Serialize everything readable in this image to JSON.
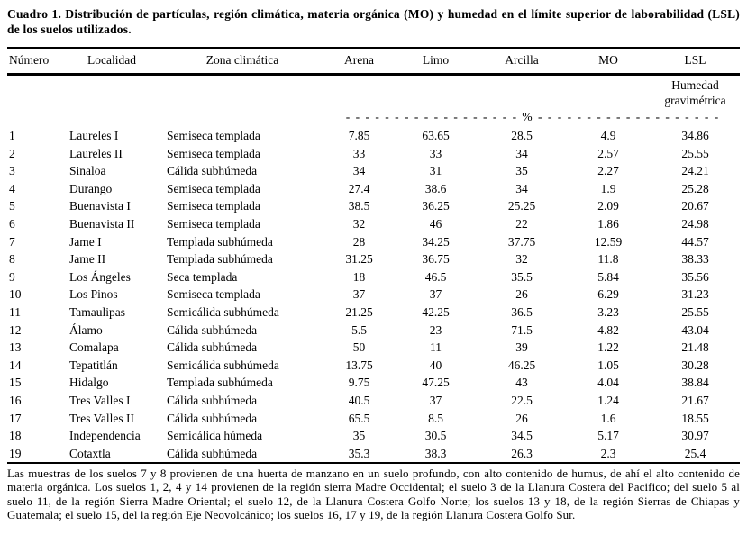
{
  "caption": "Cuadro 1. Distribución de partículas, región climática, materia orgánica (MO) y humedad en el límite superior de laborabilidad (LSL) de los suelos utilizados.",
  "table": {
    "columns": [
      "Número",
      "Localidad",
      "Zona climática",
      "Arena",
      "Limo",
      "Arcilla",
      "MO",
      "LSL"
    ],
    "lsl_subheader": "Humedad gravimétrica",
    "units_line": "- - - - - - - - - - - - - - - - - - % - - - - - - - - - - - - - - - - - - -",
    "rows": [
      [
        "1",
        "Laureles I",
        "Semiseca templada",
        "7.85",
        "63.65",
        "28.5",
        "4.9",
        "34.86"
      ],
      [
        "2",
        "Laureles II",
        "Semiseca templada",
        "33",
        "33",
        "34",
        "2.57",
        "25.55"
      ],
      [
        "3",
        "Sinaloa",
        "Cálida subhúmeda",
        "34",
        "31",
        "35",
        "2.27",
        "24.21"
      ],
      [
        "4",
        "Durango",
        "Semiseca templada",
        "27.4",
        "38.6",
        "34",
        "1.9",
        "25.28"
      ],
      [
        "5",
        "Buenavista I",
        "Semiseca templada",
        "38.5",
        "36.25",
        "25.25",
        "2.09",
        "20.67"
      ],
      [
        "6",
        "Buenavista II",
        "Semiseca templada",
        "32",
        "46",
        "22",
        "1.86",
        "24.98"
      ],
      [
        "7",
        "Jame I",
        "Templada subhúmeda",
        "28",
        "34.25",
        "37.75",
        "12.59",
        "44.57"
      ],
      [
        "8",
        "Jame II",
        "Templada subhúmeda",
        "31.25",
        "36.75",
        "32",
        "11.8",
        "38.33"
      ],
      [
        "9",
        "Los Ángeles",
        "Seca templada",
        "18",
        "46.5",
        "35.5",
        "5.84",
        "35.56"
      ],
      [
        "10",
        "Los Pinos",
        "Semiseca templada",
        "37",
        "37",
        "26",
        "6.29",
        "31.23"
      ],
      [
        "11",
        "Tamaulipas",
        "Semicálida subhúmeda",
        "21.25",
        "42.25",
        "36.5",
        "3.23",
        "25.55"
      ],
      [
        "12",
        "Álamo",
        "Cálida subhúmeda",
        "5.5",
        "23",
        "71.5",
        "4.82",
        "43.04"
      ],
      [
        "13",
        "Comalapa",
        "Cálida subhúmeda",
        "50",
        "11",
        "39",
        "1.22",
        "21.48"
      ],
      [
        "14",
        "Tepatitlán",
        "Semicálida subhúmeda",
        "13.75",
        "40",
        "46.25",
        "1.05",
        "30.28"
      ],
      [
        "15",
        "Hidalgo",
        "Templada subhúmeda",
        "9.75",
        "47.25",
        "43",
        "4.04",
        "38.84"
      ],
      [
        "16",
        "Tres Valles I",
        "Cálida subhúmeda",
        "40.5",
        "37",
        "22.5",
        "1.24",
        "21.67"
      ],
      [
        "17",
        "Tres Valles II",
        "Cálida subhúmeda",
        "65.5",
        "8.5",
        "26",
        "1.6",
        "18.55"
      ],
      [
        "18",
        "Independencia",
        "Semicálida húmeda",
        "35",
        "30.5",
        "34.5",
        "5.17",
        "30.97"
      ],
      [
        "19",
        "Cotaxtla",
        "Cálida subhúmeda",
        "35.3",
        "38.3",
        "26.3",
        "2.3",
        "25.4"
      ]
    ]
  },
  "footnote": "Las muestras de los suelos 7 y 8 provienen de una huerta de manzano en un suelo profundo, con alto contenido de humus, de ahí el alto contenido de materia orgánica. Los suelos 1, 2, 4 y 14 provienen de la región sierra Madre Occidental; el suelo 3 de la Llanura Costera del Pacifico; del suelo 5 al suelo 11, de la región Sierra Madre Oriental;  el suelo 12, de la Llanura Costera Golfo Norte; los suelos 13 y 18, de la región Sierras de Chiapas y Guatemala; el suelo 15, del la región Eje Neovolcánico; los suelos 16, 17 y 19, de la región Llanura Costera Golfo Sur."
}
